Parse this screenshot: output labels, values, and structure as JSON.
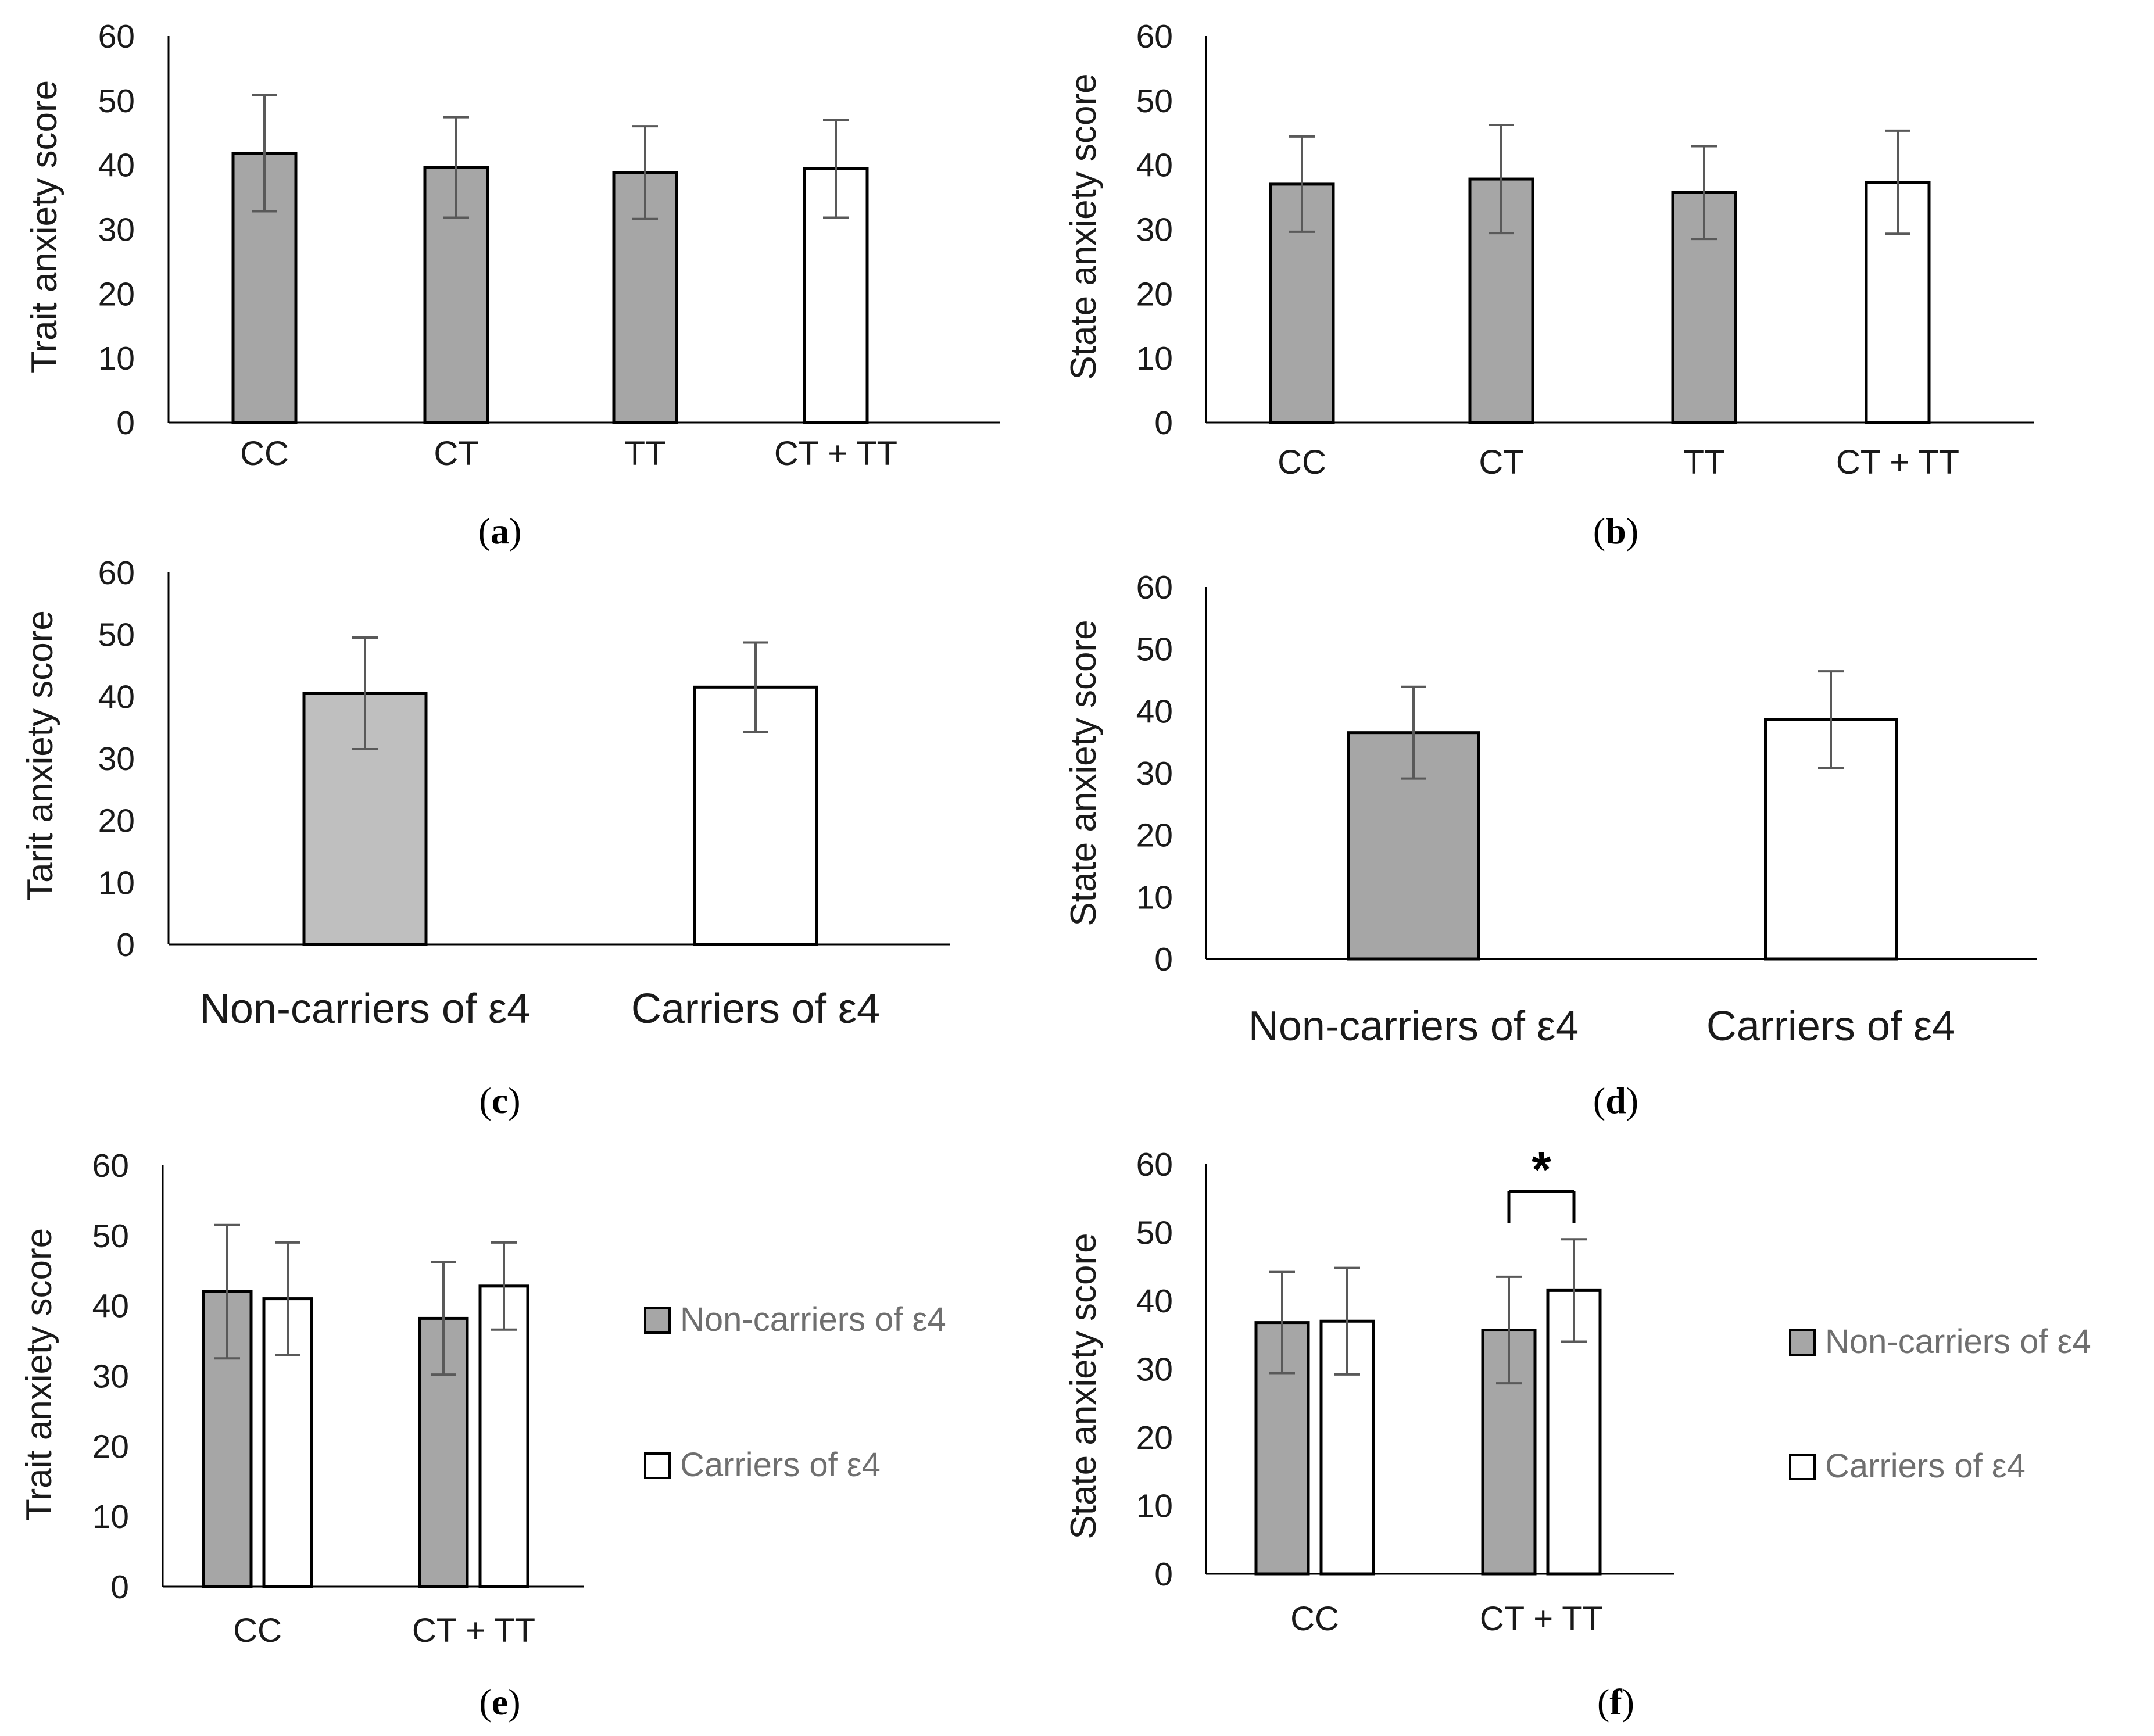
{
  "colors": {
    "dark_bar": "#a6a6a6",
    "light_bar": "#bfbfbf",
    "white_bar": "#ffffff",
    "bar_edge": "#000000",
    "axis": "#000000",
    "error_bar": "#595959"
  },
  "chart_data": [
    {
      "id": "a",
      "type": "bar",
      "caption": "a",
      "ylabel": "Trait anxiety score",
      "ylim": [
        0,
        60
      ],
      "yticks": [
        0,
        10,
        20,
        30,
        40,
        50,
        60
      ],
      "categories": [
        "CC",
        "CT",
        "TT",
        "CT + TT"
      ],
      "values": [
        41.8,
        39.6,
        38.8,
        39.4
      ],
      "errors": [
        9.0,
        7.8,
        7.2,
        7.6
      ],
      "fills": [
        "dark_bar",
        "dark_bar",
        "dark_bar",
        "white_bar"
      ]
    },
    {
      "id": "b",
      "type": "bar",
      "caption": "b",
      "ylabel": "State anxiety score",
      "ylim": [
        0,
        60
      ],
      "yticks": [
        0,
        10,
        20,
        30,
        40,
        50,
        60
      ],
      "categories": [
        "CC",
        "CT",
        "TT",
        "CT + TT"
      ],
      "values": [
        37.0,
        37.8,
        35.7,
        37.3
      ],
      "errors": [
        7.4,
        8.4,
        7.2,
        8.0
      ],
      "fills": [
        "dark_bar",
        "dark_bar",
        "dark_bar",
        "white_bar"
      ]
    },
    {
      "id": "c",
      "type": "bar",
      "caption": "c",
      "ylabel": "Tarit anxiety score",
      "ylim": [
        0,
        60
      ],
      "yticks": [
        0,
        10,
        20,
        30,
        40,
        50,
        60
      ],
      "categories": [
        "Non-carriers of ε4",
        "Carriers of ε4"
      ],
      "values": [
        40.5,
        41.5
      ],
      "errors": [
        9.0,
        7.2
      ],
      "fills": [
        "light_bar",
        "white_bar"
      ]
    },
    {
      "id": "d",
      "type": "bar",
      "caption": "d",
      "ylabel": "State anxiety score",
      "ylim": [
        0,
        60
      ],
      "yticks": [
        0,
        10,
        20,
        30,
        40,
        50,
        60
      ],
      "categories": [
        "Non-carriers of ε4",
        "Carriers of ε4"
      ],
      "values": [
        36.5,
        38.6
      ],
      "errors": [
        7.4,
        7.8
      ],
      "fills": [
        "dark_bar",
        "white_bar"
      ]
    },
    {
      "id": "e",
      "type": "bar",
      "caption": "e",
      "ylabel": "Trait anxiety score",
      "ylim": [
        0,
        60
      ],
      "yticks": [
        0,
        10,
        20,
        30,
        40,
        50,
        60
      ],
      "categories": [
        "CC",
        "CT + TT"
      ],
      "series": [
        {
          "name": "Non-carriers of ε4",
          "fill": "dark_bar",
          "values": [
            42.0,
            38.2
          ],
          "errors": [
            9.5,
            8.0
          ]
        },
        {
          "name": "Carriers of ε4",
          "fill": "white_bar",
          "values": [
            41.0,
            42.8
          ],
          "errors": [
            8.0,
            6.2
          ]
        }
      ],
      "legend": [
        "Non-carriers of ε4",
        "Carriers of ε4"
      ],
      "legend_position": "right"
    },
    {
      "id": "f",
      "type": "bar",
      "caption": "f",
      "ylabel": "State anxiety score",
      "ylim": [
        0,
        60
      ],
      "yticks": [
        0,
        10,
        20,
        30,
        40,
        50,
        60
      ],
      "categories": [
        "CC",
        "CT + TT"
      ],
      "series": [
        {
          "name": "Non-carriers of ε4",
          "fill": "dark_bar",
          "values": [
            36.8,
            35.7
          ],
          "errors": [
            7.4,
            7.8
          ]
        },
        {
          "name": "Carriers of ε4",
          "fill": "white_bar",
          "values": [
            37.0,
            41.5
          ],
          "errors": [
            7.8,
            7.5
          ]
        }
      ],
      "legend": [
        "Non-carriers of ε4",
        "Carriers of ε4"
      ],
      "legend_position": "right",
      "significance": {
        "marker": "*",
        "category_index": 1,
        "level": 56
      }
    }
  ]
}
